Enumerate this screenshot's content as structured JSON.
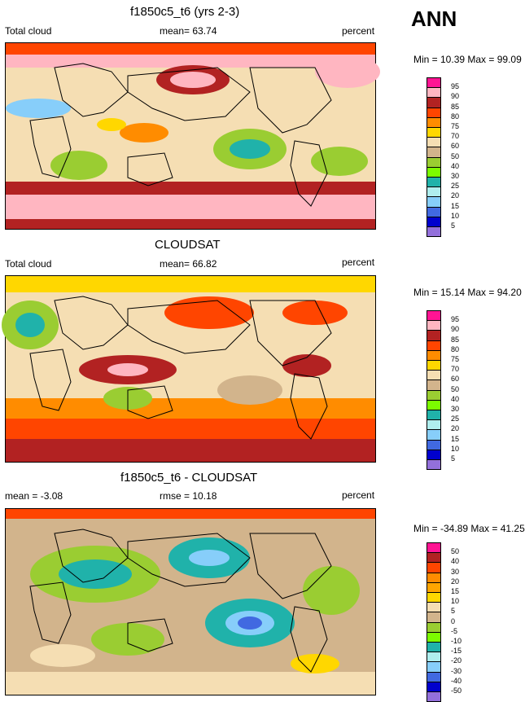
{
  "season": "ANN",
  "panels": [
    {
      "title": "f1850c5_t6 (yrs 2-3)",
      "left_label": "Total cloud",
      "center_label": "mean=  63.74",
      "right_label": "percent",
      "minmax": "Min =  10.39 Max =  99.09",
      "levels": [
        "95",
        "90",
        "85",
        "80",
        "75",
        "70",
        "60",
        "50",
        "40",
        "30",
        "25",
        "20",
        "15",
        "10",
        "5"
      ],
      "colors": [
        "#ff1493",
        "#ffb6c1",
        "#b22222",
        "#ff4500",
        "#ff8c00",
        "#ffd700",
        "#f5deb3",
        "#d2b48c",
        "#9acd32",
        "#7cfc00",
        "#20b2aa",
        "#afeeee",
        "#87cefa",
        "#4169e1",
        "#0000cd",
        "#9370db"
      ]
    },
    {
      "title": "CLOUDSAT",
      "left_label": "Total cloud",
      "center_label": "mean=  66.82",
      "right_label": "percent",
      "minmax": "Min =  15.14 Max =  94.20",
      "levels": [
        "95",
        "90",
        "85",
        "80",
        "75",
        "70",
        "60",
        "50",
        "40",
        "30",
        "25",
        "20",
        "15",
        "10",
        "5"
      ],
      "colors": [
        "#ff1493",
        "#ffb6c1",
        "#b22222",
        "#ff4500",
        "#ff8c00",
        "#ffd700",
        "#f5deb3",
        "#d2b48c",
        "#9acd32",
        "#7cfc00",
        "#20b2aa",
        "#afeeee",
        "#87cefa",
        "#4169e1",
        "#0000cd",
        "#9370db"
      ]
    },
    {
      "title": "f1850c5_t6 - CLOUDSAT",
      "left_label": "mean =  -3.08",
      "center_label": "rmse =  10.18",
      "right_label": "percent",
      "minmax": "Min = -34.89 Max =  41.25",
      "levels": [
        "50",
        "40",
        "30",
        "20",
        "15",
        "10",
        "5",
        "0",
        "-5",
        "-10",
        "-15",
        "-20",
        "-30",
        "-40",
        "-50"
      ],
      "colors": [
        "#ff1493",
        "#b22222",
        "#ff4500",
        "#ff8c00",
        "#ffa500",
        "#ffd700",
        "#f5deb3",
        "#d2b48c",
        "#9acd32",
        "#7cfc00",
        "#20b2aa",
        "#afeeee",
        "#87cefa",
        "#4169e1",
        "#0000cd",
        "#9370db"
      ]
    }
  ],
  "chart_data": [
    {
      "type": "heatmap",
      "title": "f1850c5_t6 (yrs 2-3)",
      "variable": "Total cloud",
      "units": "percent",
      "mean": 63.74,
      "min": 10.39,
      "max": 99.09,
      "contour_levels": [
        5,
        10,
        15,
        20,
        25,
        30,
        40,
        50,
        60,
        70,
        75,
        80,
        85,
        90,
        95
      ]
    },
    {
      "type": "heatmap",
      "title": "CLOUDSAT",
      "variable": "Total cloud",
      "units": "percent",
      "mean": 66.82,
      "min": 15.14,
      "max": 94.2,
      "contour_levels": [
        5,
        10,
        15,
        20,
        25,
        30,
        40,
        50,
        60,
        70,
        75,
        80,
        85,
        90,
        95
      ]
    },
    {
      "type": "heatmap",
      "title": "f1850c5_t6 - CLOUDSAT",
      "units": "percent",
      "mean": -3.08,
      "rmse": 10.18,
      "min": -34.89,
      "max": 41.25,
      "contour_levels": [
        -50,
        -40,
        -30,
        -20,
        -15,
        -10,
        -5,
        0,
        5,
        10,
        15,
        20,
        30,
        40,
        50
      ]
    }
  ]
}
